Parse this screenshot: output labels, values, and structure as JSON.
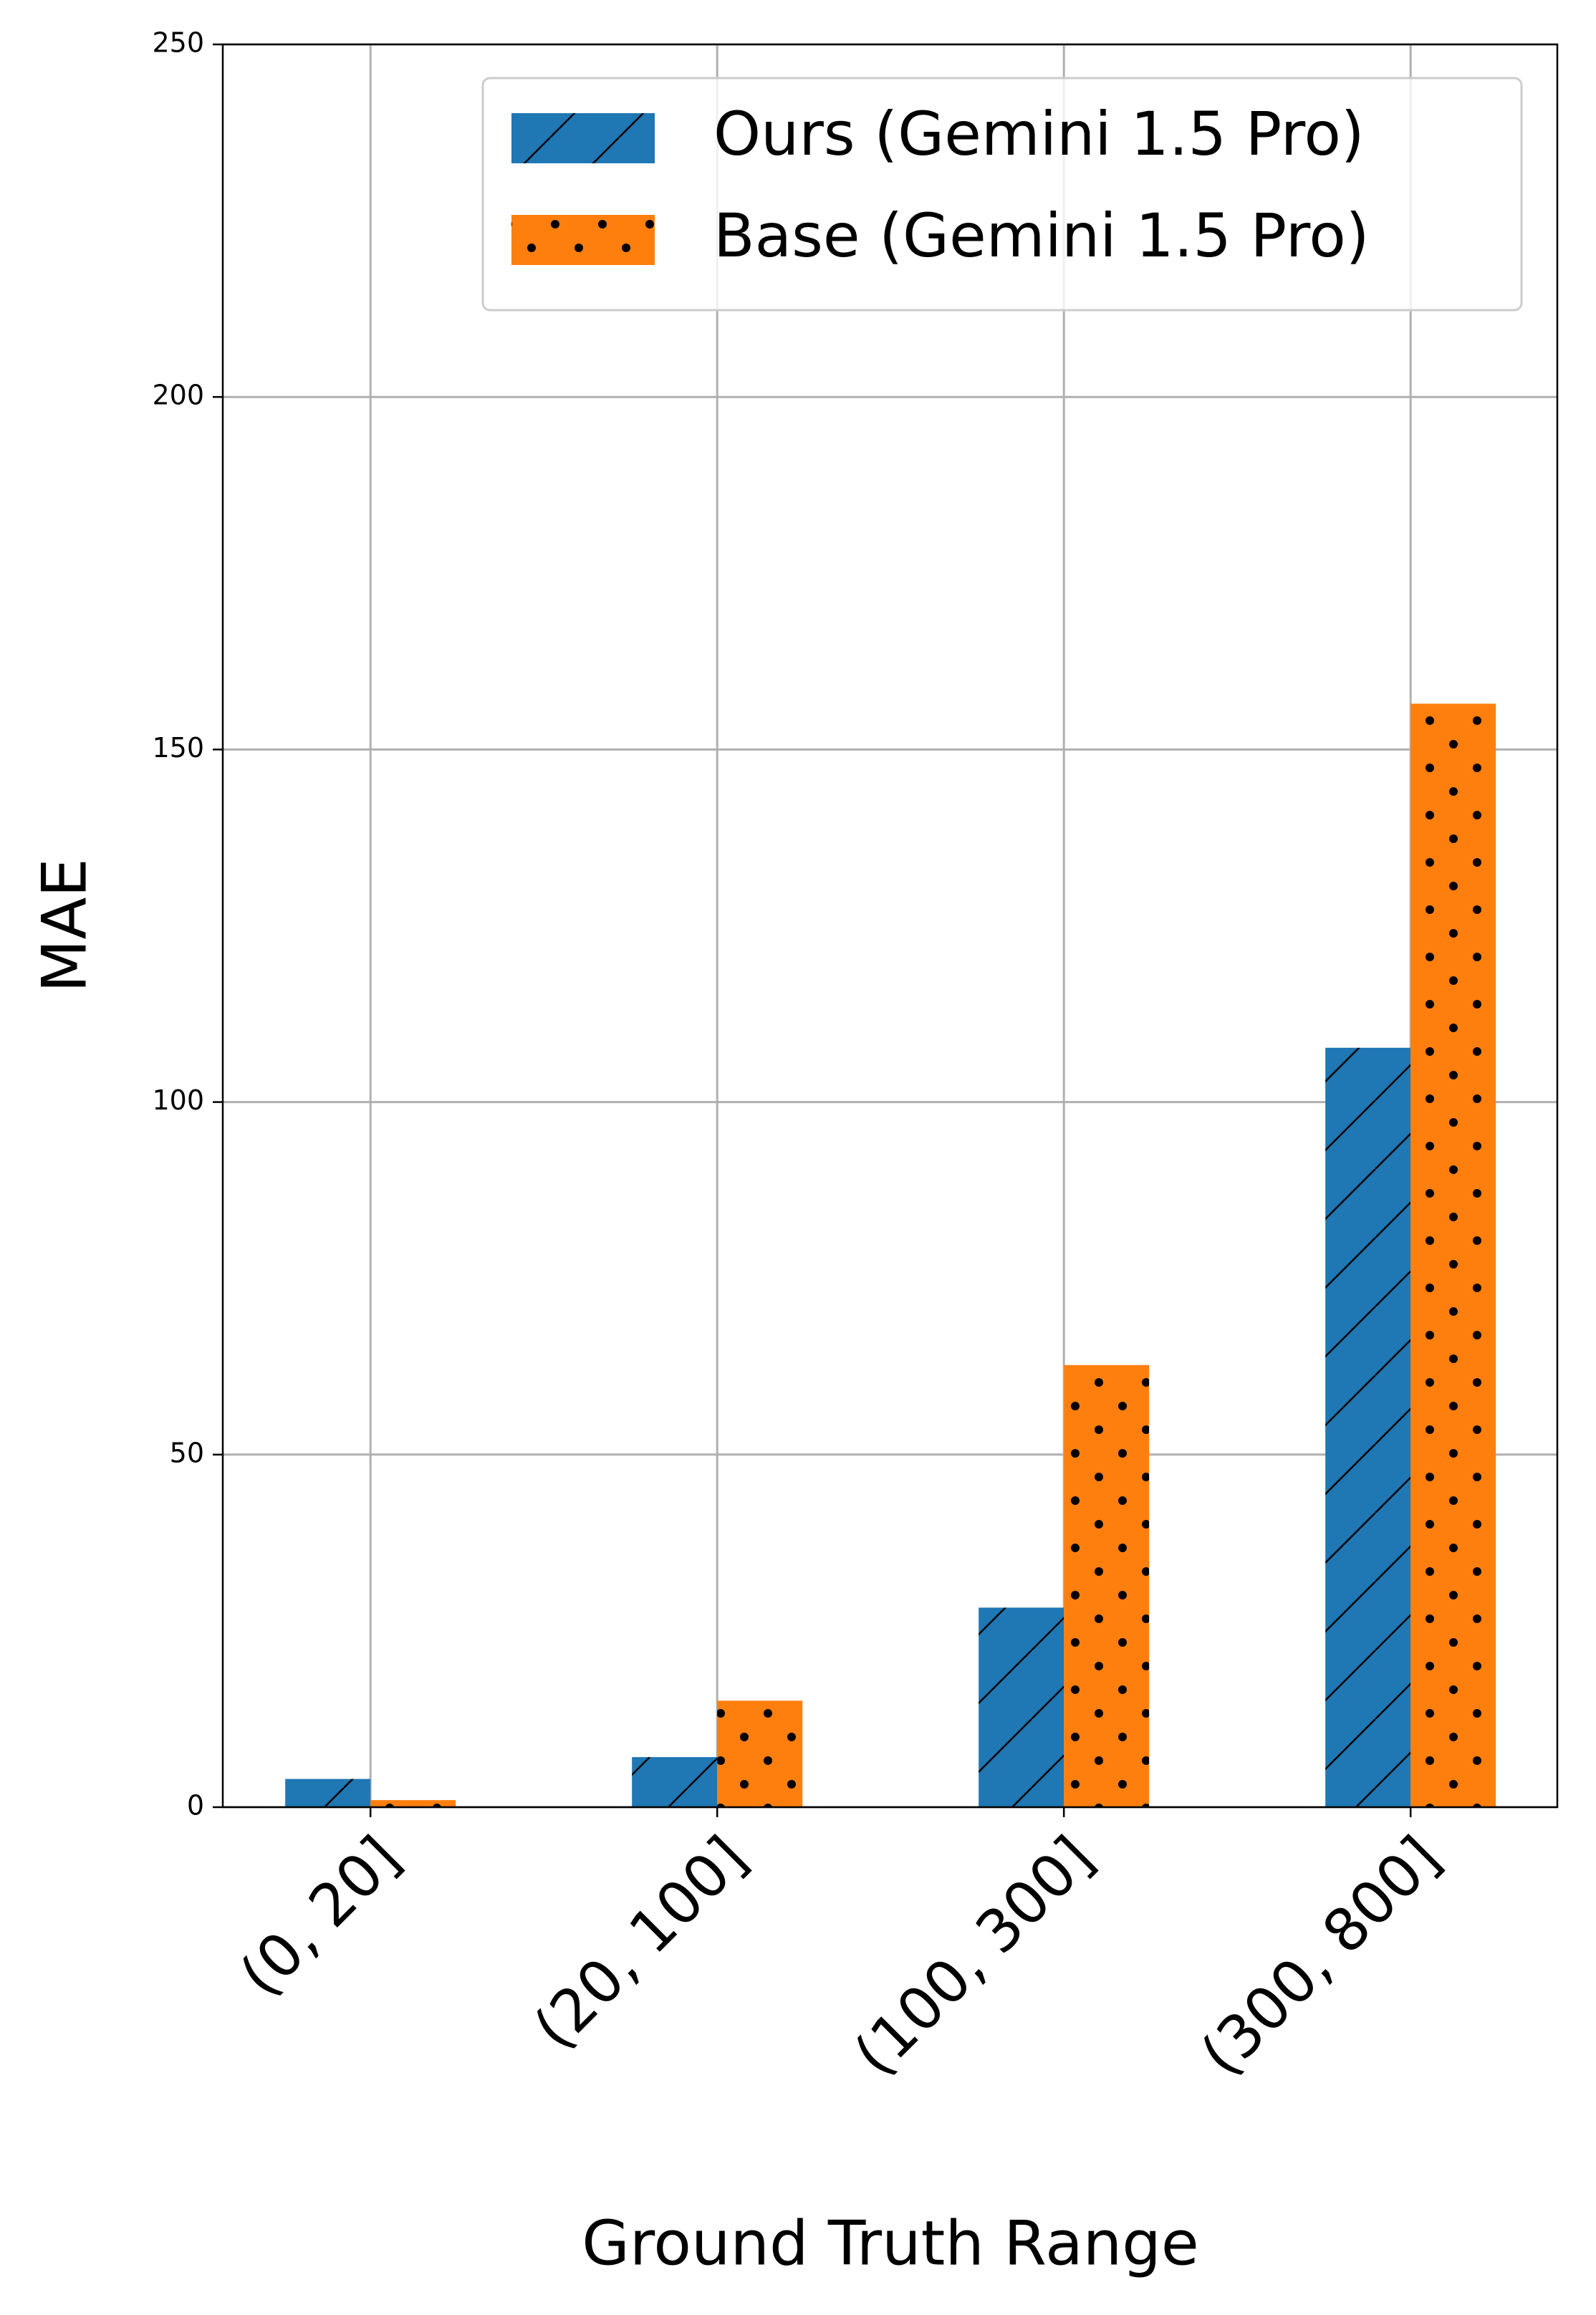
{
  "chart_data": {
    "type": "bar",
    "xlabel": "Ground Truth Range",
    "ylabel": "MAE",
    "categories": [
      "(0, 20]",
      "(20, 100]",
      "(100, 300]",
      "(300, 800]"
    ],
    "series": [
      {
        "name": "Ours (Gemini 1.5 Pro)",
        "color": "#1f77b4",
        "hatch": "/",
        "values": [
          4.0,
          7.1,
          28.3,
          107.7
        ]
      },
      {
        "name": "Base (Gemini 1.5 Pro)",
        "color": "#ff7f0e",
        "hatch": ".",
        "values": [
          1.0,
          15.1,
          62.7,
          156.5
        ]
      }
    ],
    "ylim": [
      0,
      250
    ],
    "yticks": [
      0,
      50,
      100,
      150,
      200,
      250
    ],
    "grid": true,
    "legend": "upper right"
  }
}
